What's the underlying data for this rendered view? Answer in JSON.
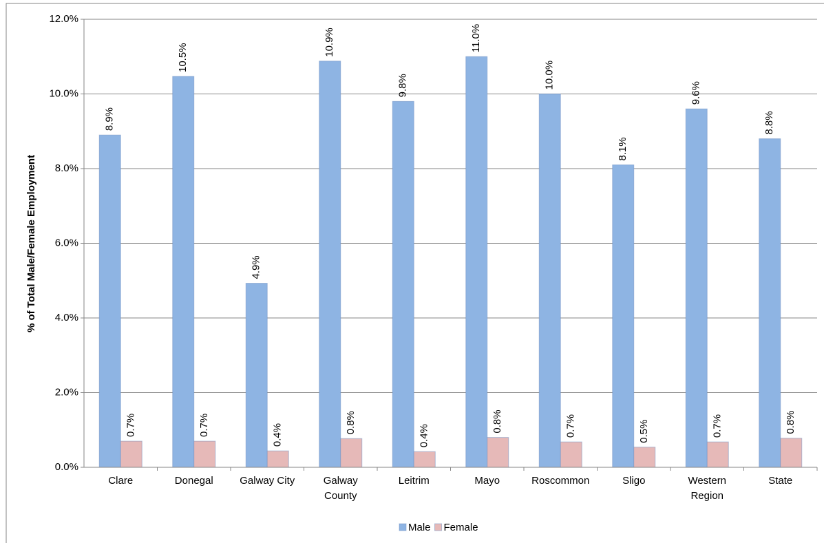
{
  "chart_data": {
    "type": "bar",
    "y_label": "% of Total Male/Female Employment",
    "categories": [
      "Clare",
      "Donegal",
      "Galway City",
      "Galway\nCounty",
      "Leitrim",
      "Mayo",
      "Roscommon",
      "Sligo",
      "Western\nRegion",
      "State"
    ],
    "series": [
      {
        "name": "Male",
        "color": "#8eb4e3",
        "values": [
          8.9,
          10.47,
          4.93,
          10.88,
          9.8,
          11.0,
          10.0,
          8.1,
          9.6,
          8.8
        ],
        "value_labels": [
          "8.9%",
          "10.5%",
          "4.9%",
          "10.9%",
          "9.8%",
          "11.0%",
          "10.0%",
          "8.1%",
          "9.6%",
          "8.8%"
        ]
      },
      {
        "name": "Female",
        "color": "#e6b9b8",
        "values": [
          0.7,
          0.7,
          0.44,
          0.77,
          0.42,
          0.8,
          0.68,
          0.54,
          0.68,
          0.78
        ],
        "value_labels": [
          "0.7%",
          "0.7%",
          "0.4%",
          "0.8%",
          "0.4%",
          "0.8%",
          "0.7%",
          "0.5%",
          "0.7%",
          "0.8%"
        ]
      }
    ],
    "ylim": [
      0,
      12
    ],
    "yticks": [
      {
        "value": 0,
        "label": "0.0%"
      },
      {
        "value": 2,
        "label": "2.0%"
      },
      {
        "value": 4,
        "label": "4.0%"
      },
      {
        "value": 6,
        "label": "6.0%"
      },
      {
        "value": 8,
        "label": "8.0%"
      },
      {
        "value": 10,
        "label": "10.0%"
      },
      {
        "value": 12,
        "label": "12.0%"
      }
    ],
    "grid": true,
    "legend": "bottom"
  }
}
